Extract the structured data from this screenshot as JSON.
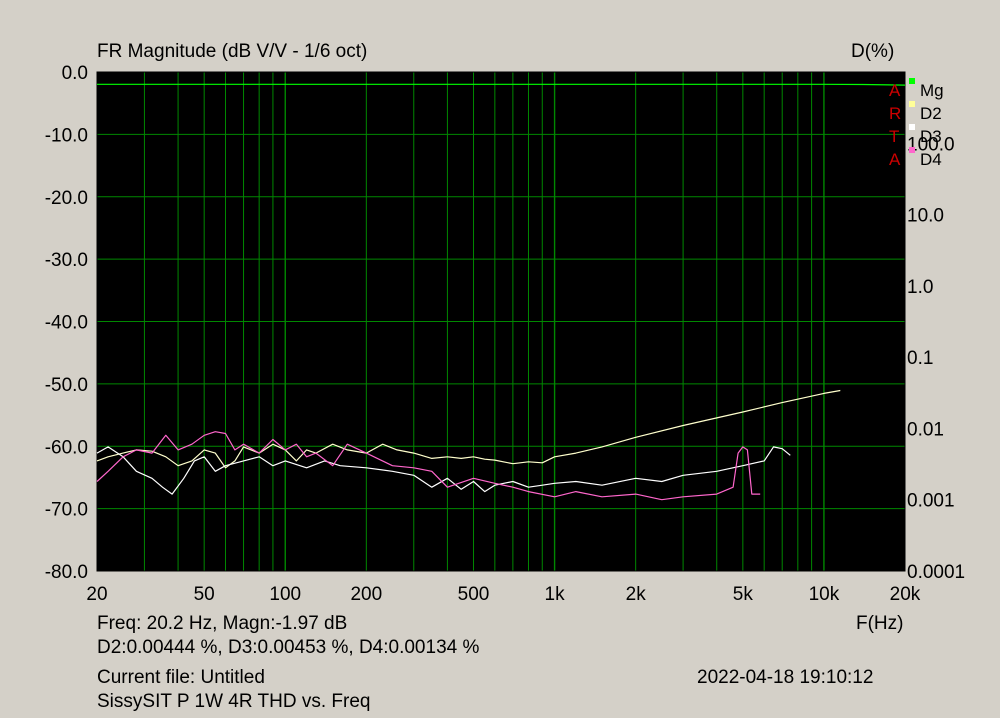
{
  "chart_data": {
    "type": "line",
    "title": "FR Magnitude (dB V/V - 1/6 oct)",
    "right_axis_title": "D(%)",
    "xlabel": "F(Hz)",
    "x_scale": "log",
    "xlim": [
      20,
      20000
    ],
    "ylim_left": [
      -80,
      0
    ],
    "ylim_right_log": [
      0.0001,
      1000
    ],
    "grid": true,
    "background": "#000000",
    "grid_color": "#008800",
    "x_tick_labels": [
      "20",
      "50",
      "100",
      "200",
      "500",
      "1k",
      "2k",
      "5k",
      "10k",
      "20k"
    ],
    "x_tick_values": [
      20,
      50,
      100,
      200,
      500,
      1000,
      2000,
      5000,
      10000,
      20000
    ],
    "left_tick_labels": [
      "0.0",
      "-10.0",
      "-20.0",
      "-30.0",
      "-40.0",
      "-50.0",
      "-60.0",
      "-70.0",
      "-80.0"
    ],
    "left_tick_values": [
      0,
      -10,
      -20,
      -30,
      -40,
      -50,
      -60,
      -70,
      -80
    ],
    "right_tick_labels": [
      "100.0",
      "10.0",
      "1.0",
      "0.1",
      "0.01",
      "0.001",
      "0.0001"
    ],
    "right_tick_values": [
      100,
      10,
      1,
      0.1,
      0.01,
      0.001,
      0.0001
    ],
    "watermark_letters": [
      "A",
      "R",
      "T",
      "A"
    ],
    "legend": [
      {
        "label": "Mg",
        "color": "#00ff00"
      },
      {
        "label": "D2",
        "color": "#ffff99"
      },
      {
        "label": "D3",
        "color": "#ffffff"
      },
      {
        "label": "D4",
        "color": "#ff66cc"
      }
    ],
    "series": [
      {
        "name": "Mg",
        "color": "#00ff00",
        "axis": "left",
        "x": [
          20,
          100,
          1000,
          5000,
          10000,
          14000,
          20000
        ],
        "y": [
          -1.97,
          -1.97,
          -1.97,
          -1.97,
          -1.97,
          -2.0,
          -2.1
        ]
      },
      {
        "name": "D2",
        "color": "#ffffcc",
        "axis": "right",
        "x": [
          20,
          22,
          25,
          28,
          32,
          36,
          40,
          45,
          50,
          55,
          60,
          65,
          70,
          80,
          90,
          100,
          110,
          120,
          130,
          150,
          170,
          200,
          230,
          260,
          300,
          350,
          400,
          450,
          500,
          550,
          600,
          700,
          800,
          900,
          1000,
          1200,
          1500,
          2000,
          3000,
          5000,
          7000,
          10000,
          11500
        ],
        "y": [
          0.0035,
          0.004,
          0.0045,
          0.005,
          0.0048,
          0.004,
          0.003,
          0.0035,
          0.005,
          0.0045,
          0.0028,
          0.0035,
          0.0055,
          0.0045,
          0.006,
          0.005,
          0.0035,
          0.005,
          0.0045,
          0.006,
          0.005,
          0.0045,
          0.006,
          0.005,
          0.0045,
          0.0038,
          0.004,
          0.0038,
          0.004,
          0.0037,
          0.0036,
          0.0032,
          0.0034,
          0.0033,
          0.004,
          0.0045,
          0.0055,
          0.0075,
          0.011,
          0.017,
          0.023,
          0.031,
          0.034
        ]
      },
      {
        "name": "D3",
        "color": "#ffffff",
        "axis": "right",
        "x": [
          20,
          22,
          25,
          28,
          32,
          35,
          38,
          42,
          46,
          50,
          55,
          60,
          70,
          80,
          90,
          100,
          120,
          140,
          160,
          200,
          250,
          300,
          350,
          400,
          450,
          500,
          550,
          600,
          700,
          800,
          900,
          1000,
          1200,
          1500,
          2000,
          2500,
          3000,
          4000,
          5000,
          6000,
          6500,
          7000,
          7500
        ],
        "y": [
          0.0045,
          0.0055,
          0.004,
          0.0025,
          0.002,
          0.0015,
          0.0012,
          0.002,
          0.0035,
          0.004,
          0.0025,
          0.003,
          0.0035,
          0.004,
          0.003,
          0.0035,
          0.0028,
          0.0035,
          0.003,
          0.0028,
          0.0025,
          0.0022,
          0.0015,
          0.002,
          0.0014,
          0.0018,
          0.0013,
          0.0016,
          0.0018,
          0.0015,
          0.0016,
          0.0017,
          0.0018,
          0.0016,
          0.002,
          0.0018,
          0.0022,
          0.0025,
          0.003,
          0.0035,
          0.0055,
          0.0052,
          0.0042
        ]
      },
      {
        "name": "D4",
        "color": "#ff66cc",
        "axis": "right",
        "x": [
          20,
          22,
          25,
          28,
          32,
          36,
          40,
          45,
          50,
          55,
          60,
          65,
          70,
          80,
          90,
          100,
          110,
          120,
          130,
          150,
          170,
          200,
          250,
          300,
          350,
          400,
          500,
          600,
          700,
          800,
          1000,
          1200,
          1500,
          2000,
          2500,
          3000,
          4000,
          4600,
          4800,
          5000,
          5200,
          5400,
          5800
        ],
        "y": [
          0.0018,
          0.0025,
          0.004,
          0.005,
          0.0045,
          0.008,
          0.005,
          0.006,
          0.008,
          0.009,
          0.0085,
          0.005,
          0.006,
          0.0045,
          0.007,
          0.005,
          0.006,
          0.004,
          0.0045,
          0.003,
          0.006,
          0.0045,
          0.003,
          0.0028,
          0.0025,
          0.0015,
          0.002,
          0.0017,
          0.0015,
          0.0013,
          0.0011,
          0.0013,
          0.0011,
          0.0012,
          0.001,
          0.0011,
          0.0012,
          0.0015,
          0.0045,
          0.0055,
          0.005,
          0.0012,
          0.0012
        ]
      }
    ]
  },
  "readout": {
    "line1": "Freq: 20.2 Hz, Magn:-1.97 dB",
    "line2": "D2:0.00444 %, D3:0.00453 %, D4:0.00134 %"
  },
  "footer": {
    "current_file": "Current file: Untitled",
    "description": "SissySIT P 1W 4R THD vs. Freq",
    "timestamp": "2022-04-18   19:10:12"
  }
}
